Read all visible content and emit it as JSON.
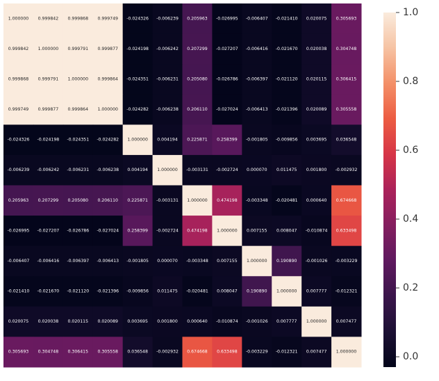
{
  "chart_data": {
    "type": "heatmap",
    "title": "",
    "xlabel": "",
    "ylabel": "",
    "colormap": "rocket",
    "value_range": [
      -0.03,
      1.0
    ],
    "colorbar_ticks": [
      "0.0",
      "0.2",
      "0.4",
      "0.6",
      "0.8",
      "1.0"
    ],
    "colorbar_tick_values": [
      0.0,
      0.2,
      0.4,
      0.6,
      0.8,
      1.0
    ],
    "values": [
      [
        1.0,
        0.999842,
        0.999868,
        0.999749,
        -0.024326,
        -0.006239,
        0.205963,
        -0.026995,
        -0.006407,
        -0.02141,
        0.020075,
        0.305693
      ],
      [
        0.999842,
        1.0,
        0.999791,
        0.999877,
        -0.024198,
        -0.006242,
        0.207299,
        -0.027207,
        -0.006416,
        -0.02167,
        0.020038,
        0.304748
      ],
      [
        0.999868,
        0.999791,
        1.0,
        0.999864,
        -0.024351,
        -0.006231,
        0.20508,
        -0.026786,
        -0.006397,
        -0.02112,
        0.020115,
        0.306415
      ],
      [
        0.999749,
        0.999877,
        0.999864,
        1.0,
        -0.024282,
        -0.006238,
        0.20611,
        -0.027024,
        -0.006413,
        -0.021396,
        0.020089,
        0.305558
      ],
      [
        -0.024326,
        -0.024198,
        -0.024351,
        -0.024282,
        1.0,
        0.004194,
        0.225871,
        0.258399,
        -0.001805,
        -0.009856,
        0.003695,
        0.036548
      ],
      [
        -0.006239,
        -0.006242,
        -0.006231,
        -0.006238,
        0.004194,
        1.0,
        -0.003131,
        -0.002724,
        7e-05,
        0.011475,
        0.0018,
        -0.002932
      ],
      [
        0.205963,
        0.207299,
        0.20508,
        0.20611,
        0.225871,
        -0.003131,
        1.0,
        0.474198,
        -0.003348,
        -0.020481,
        0.00064,
        0.674668
      ],
      [
        -0.026995,
        -0.027207,
        -0.026786,
        -0.027024,
        0.258399,
        -0.002724,
        0.474198,
        1.0,
        0.007155,
        0.008047,
        -0.010874,
        0.633498
      ],
      [
        -0.006407,
        -0.006416,
        -0.006397,
        -0.006413,
        -0.001805,
        7e-05,
        -0.003348,
        0.007155,
        1.0,
        0.19089,
        -0.001026,
        -0.003229
      ],
      [
        -0.02141,
        -0.02167,
        -0.02112,
        -0.021396,
        -0.009856,
        0.011475,
        -0.020481,
        0.008047,
        0.19089,
        1.0,
        0.007777,
        -0.012321
      ],
      [
        0.020075,
        0.020038,
        0.020115,
        0.020089,
        0.003695,
        0.0018,
        0.00064,
        -0.010874,
        -0.001026,
        0.007777,
        1.0,
        0.007477
      ],
      [
        0.305693,
        0.304748,
        0.306415,
        0.305558,
        0.036548,
        -0.002932,
        0.674668,
        0.633498,
        -0.003229,
        -0.012321,
        0.007477,
        1.0
      ]
    ],
    "labels": [
      [
        "1.000000",
        "0.999842",
        "0.999868",
        "0.999749",
        "-0.024326",
        "-0.006239",
        "0.205963",
        "-0.026995",
        "-0.006407",
        "-0.021410",
        "0.020075",
        "0.305693"
      ],
      [
        "0.999842",
        "1.000000",
        "0.999791",
        "0.999877",
        "-0.024198",
        "-0.006242",
        "0.207299",
        "-0.027207",
        "-0.006416",
        "-0.021670",
        "0.020038",
        "0.304748"
      ],
      [
        "0.999868",
        "0.999791",
        "1.000000",
        "0.999864",
        "-0.024351",
        "-0.006231",
        "0.205080",
        "-0.026786",
        "-0.006397",
        "-0.021120",
        "0.020115",
        "0.306415"
      ],
      [
        "0.999749",
        "0.999877",
        "0.999864",
        "1.000000",
        "-0.024282",
        "-0.006238",
        "0.206110",
        "-0.027024",
        "-0.006413",
        "-0.021396",
        "0.020089",
        "0.305558"
      ],
      [
        "-0.024326",
        "-0.024198",
        "-0.024351",
        "-0.024282",
        "1.000000",
        "0.004194",
        "0.225871",
        "0.258399",
        "-0.001805",
        "-0.009856",
        "0.003695",
        "0.036548"
      ],
      [
        "-0.006239",
        "-0.006242",
        "-0.006231",
        "-0.006238",
        "0.004194",
        "1.000000",
        "-0.003131",
        "-0.002724",
        "0.000070",
        "0.011475",
        "0.001800",
        "-0.002932"
      ],
      [
        "0.205963",
        "0.207299",
        "0.205080",
        "0.206110",
        "0.225871",
        "-0.003131",
        "1.000000",
        "0.474198",
        "-0.003348",
        "-0.020481",
        "0.000640",
        "0.674668"
      ],
      [
        "-0.026995",
        "-0.027207",
        "-0.026786",
        "-0.027024",
        "0.258399",
        "-0.002724",
        "0.474198",
        "1.000000",
        "0.007155",
        "0.008047",
        "-0.010874",
        "0.633498"
      ],
      [
        "-0.006407",
        "-0.006416",
        "-0.006397",
        "-0.006413",
        "-0.001805",
        "0.000070",
        "-0.003348",
        "0.007155",
        "1.000000",
        "0.190890",
        "-0.001026",
        "-0.003229"
      ],
      [
        "-0.021410",
        "-0.021670",
        "-0.021120",
        "-0.021396",
        "-0.009856",
        "0.011475",
        "-0.020481",
        "0.008047",
        "0.190890",
        "1.000000",
        "0.007777",
        "-0.012321"
      ],
      [
        "0.020075",
        "0.020038",
        "0.020115",
        "0.020089",
        "0.003695",
        "0.001800",
        "0.000640",
        "-0.010874",
        "-0.001026",
        "0.007777",
        "1.000000",
        "0.007477"
      ],
      [
        "0.305693",
        "0.304748",
        "0.306415",
        "0.305558",
        "0.036548",
        "-0.002932",
        "0.674668",
        "0.633498",
        "-0.003229",
        "-0.012321",
        "0.007477",
        "1.000000"
      ]
    ],
    "grid": false,
    "legend": "colorbar-right"
  }
}
